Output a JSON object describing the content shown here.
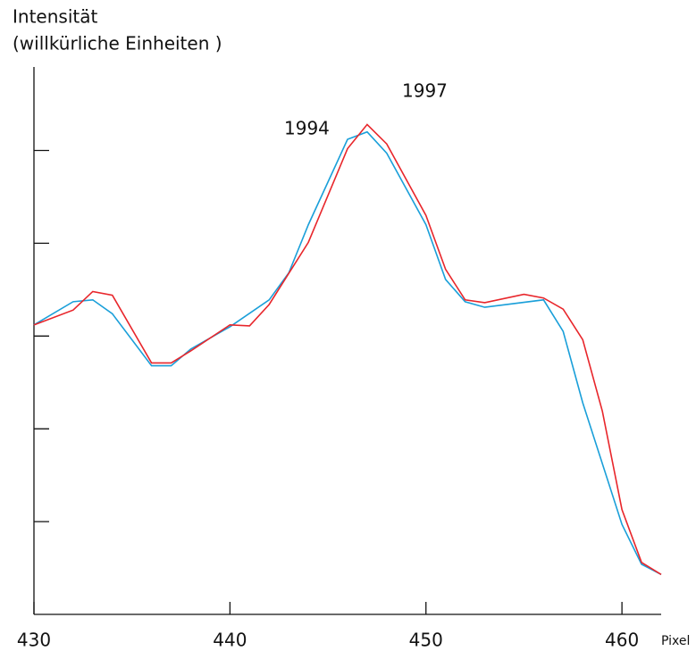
{
  "chart_data": {
    "type": "line",
    "ylabel": [
      "Intensität",
      "(willkürliche Einheiten )"
    ],
    "xlabel": "Pixel",
    "xlim": [
      430,
      462
    ],
    "xticks": [
      430,
      440,
      450,
      460
    ],
    "ylim": [
      0,
      5.9
    ],
    "yticks": [
      1,
      2,
      3,
      4,
      5
    ],
    "series": [
      {
        "name": "1994",
        "color": "#1a9fd9",
        "x": [
          430,
          432,
          433,
          434,
          436,
          437,
          438,
          440,
          442,
          443,
          444,
          446,
          447,
          448,
          450,
          451,
          452,
          453,
          456,
          457,
          458,
          460,
          461,
          462
        ],
        "values": [
          3.12,
          3.37,
          3.39,
          3.24,
          2.68,
          2.68,
          2.86,
          3.1,
          3.39,
          3.68,
          4.2,
          5.12,
          5.2,
          4.97,
          4.2,
          3.61,
          3.37,
          3.31,
          3.39,
          3.05,
          2.28,
          0.97,
          0.54,
          0.43
        ]
      },
      {
        "name": "1997",
        "color": "#e8262b",
        "x": [
          430,
          432,
          433,
          434,
          436,
          437,
          438,
          440,
          441,
          442,
          444,
          446,
          447,
          448,
          450,
          451,
          452,
          453,
          455,
          456,
          457,
          458,
          459,
          460,
          461,
          462
        ],
        "values": [
          3.12,
          3.28,
          3.48,
          3.44,
          2.71,
          2.71,
          2.84,
          3.12,
          3.11,
          3.34,
          4.01,
          5.02,
          5.28,
          5.07,
          4.3,
          3.72,
          3.39,
          3.36,
          3.45,
          3.41,
          3.29,
          2.96,
          2.19,
          1.13,
          0.56,
          0.43
        ]
      }
    ]
  }
}
